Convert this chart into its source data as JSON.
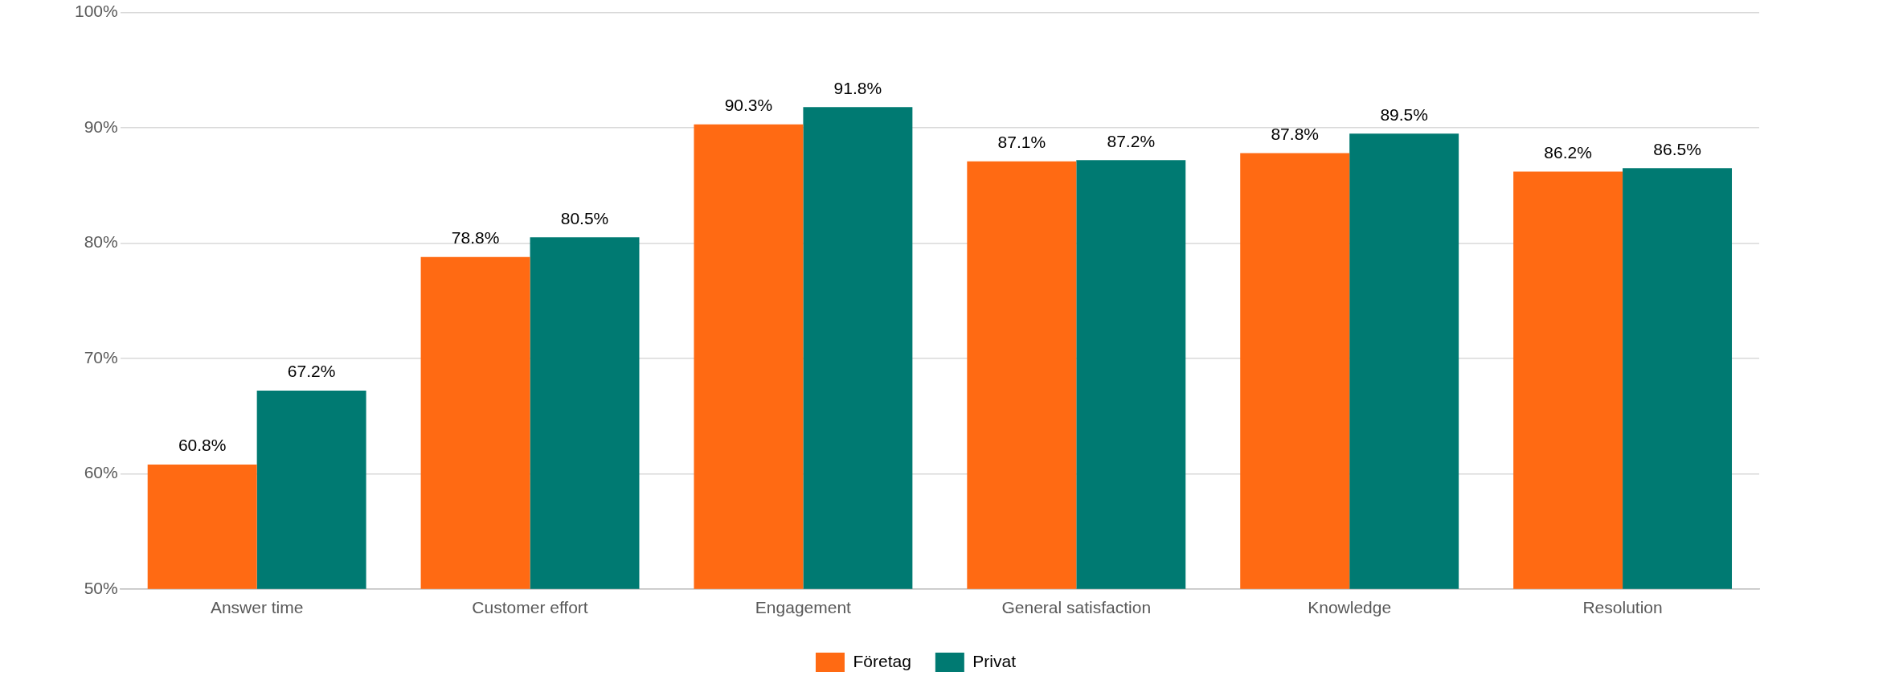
{
  "chart_data": {
    "type": "bar",
    "categories": [
      "Answer time",
      "Customer effort",
      "Engagement",
      "General satisfaction",
      "Knowledge",
      "Resolution"
    ],
    "series": [
      {
        "name": "Företag",
        "color": "#ff6a13",
        "values": [
          60.8,
          78.8,
          90.3,
          87.1,
          87.8,
          86.2
        ],
        "value_labels": [
          "60.8%",
          "78.8%",
          "90.3%",
          "87.1%",
          "87.8%",
          "86.2%"
        ]
      },
      {
        "name": "Privat",
        "color": "#007a72",
        "values": [
          67.2,
          80.5,
          91.8,
          87.2,
          89.5,
          86.5
        ],
        "value_labels": [
          "67.2%",
          "80.5%",
          "91.8%",
          "87.2%",
          "89.5%",
          "86.5%"
        ]
      }
    ],
    "ylim": [
      50,
      100
    ],
    "yticks": [
      {
        "value": 50,
        "label": "50%"
      },
      {
        "value": 60,
        "label": "60%"
      },
      {
        "value": 70,
        "label": "70%"
      },
      {
        "value": 80,
        "label": "80%"
      },
      {
        "value": 90,
        "label": "90%"
      },
      {
        "value": 100,
        "label": "100%"
      }
    ],
    "grid": "y",
    "legend": "bottom"
  }
}
